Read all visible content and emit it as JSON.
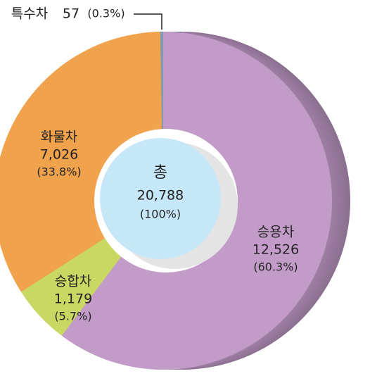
{
  "chart_data": {
    "type": "donut",
    "categories": [
      "승용차",
      "승합차",
      "화물차",
      "특수차"
    ],
    "values": [
      12526,
      1179,
      7026,
      57
    ],
    "value_labels": [
      "12,526",
      "1,179",
      "7,026",
      "57"
    ],
    "percent_labels": [
      "(60.3%)",
      "(5.7%)",
      "(33.8%)",
      "(0.3%)"
    ],
    "colors": [
      "#c29bc9",
      "#c9d862",
      "#f1a24c",
      "#7d9cb4"
    ],
    "center_label": {
      "title": "총",
      "value": "20,788",
      "percent": "(100%)"
    }
  }
}
